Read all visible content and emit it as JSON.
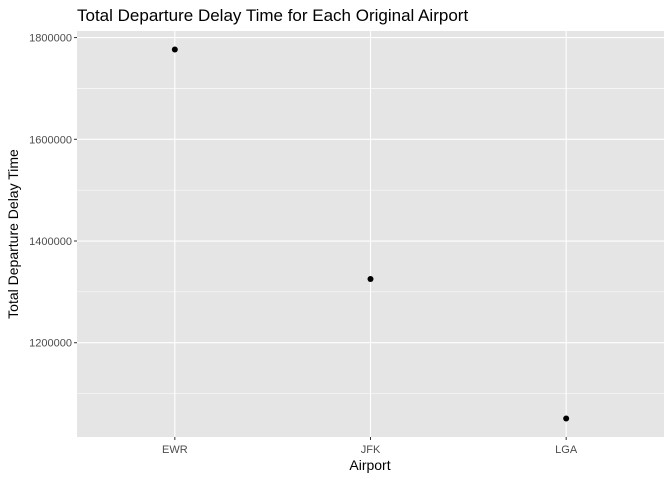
{
  "chart_data": {
    "type": "scatter",
    "title": "Total Departure Delay Time for Each Original Airport",
    "xlabel": "Airport",
    "ylabel": "Total Departure Delay Time",
    "categories": [
      "EWR",
      "JFK",
      "LGA"
    ],
    "values": [
      1776635,
      1325264,
      1050946
    ],
    "y_ticks": [
      1200000,
      1400000,
      1600000,
      1800000
    ],
    "y_tick_labels": [
      "1200000",
      "1400000",
      "1600000",
      "1800000"
    ],
    "ylim": [
      1014662,
      1812919
    ],
    "grid": true,
    "legend": "none",
    "colors": {
      "panel_background": "#e5e5e5",
      "grid_line": "#ffffff",
      "point": "#000000",
      "tick_text": "#4d4d4d",
      "tick_mark": "#333333"
    }
  }
}
